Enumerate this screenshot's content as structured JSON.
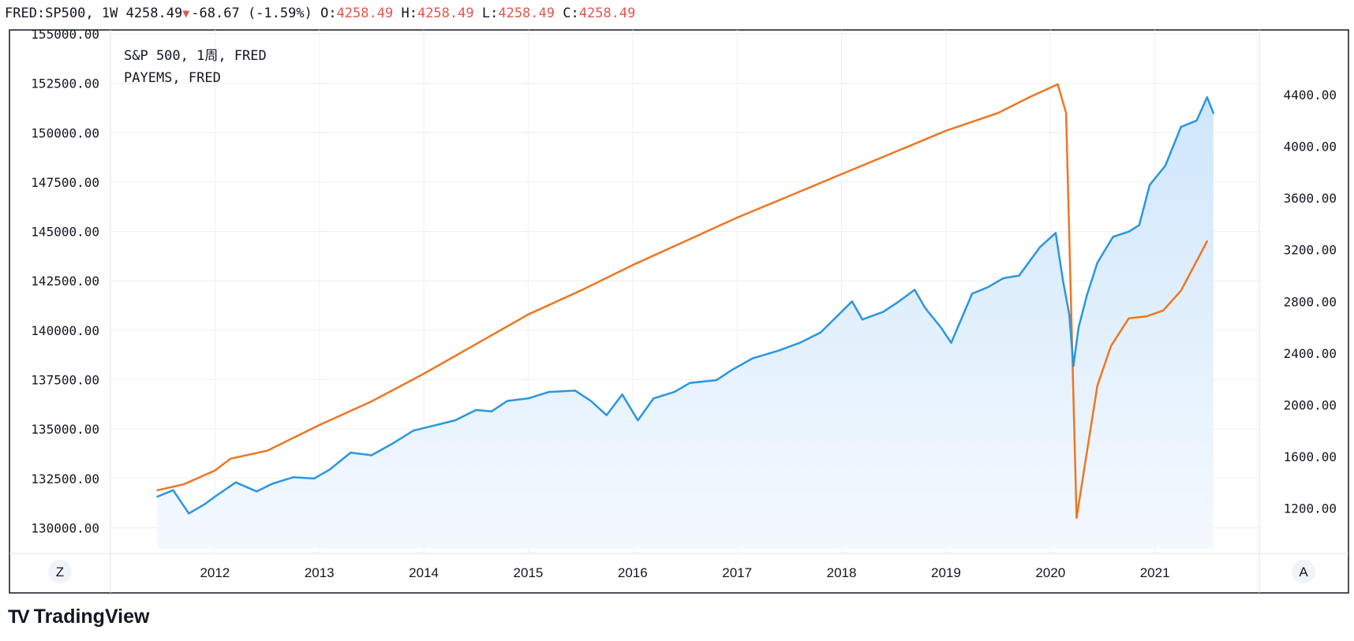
{
  "header": {
    "symbol": "FRED:SP500,",
    "interval": "1W",
    "last": "4258.49",
    "change": "-68.67",
    "change_pct": "(-1.59%)",
    "o_label": "O:",
    "o": "4258.49",
    "h_label": "H:",
    "h": "4258.49",
    "l_label": "L:",
    "l": "4258.49",
    "c_label": "C:",
    "c": "4258.49"
  },
  "legend": {
    "line1": "S&P 500, 1周, FRED",
    "line2": "PAYEMS, FRED"
  },
  "buttons": {
    "left": "Z",
    "right": "A"
  },
  "logo": {
    "mark": "TV",
    "text": "TradingView"
  },
  "colors": {
    "sp500": "#2a96e0",
    "payems": "#f07520",
    "grid": "#eef0f3",
    "border": "#131722",
    "area_top": "#cfe6fb",
    "area_bottom": "#f4f9fe"
  },
  "chart_data": {
    "type": "line",
    "title": "",
    "x_labels": [
      "2012",
      "2013",
      "2014",
      "2015",
      "2016",
      "2017",
      "2018",
      "2019",
      "2020",
      "2021"
    ],
    "left_axis": {
      "ylim": [
        128700,
        155200
      ],
      "ticks": [
        "130000.00",
        "132500.00",
        "135000.00",
        "137500.00",
        "140000.00",
        "142500.00",
        "145000.00",
        "147500.00",
        "150000.00",
        "152500.00",
        "155000.00"
      ]
    },
    "right_axis": {
      "ylim": [
        850,
        4900
      ],
      "ticks": [
        "1200.00",
        "1600.00",
        "2000.00",
        "2400.00",
        "2800.00",
        "3200.00",
        "3600.00",
        "4000.00",
        "4400.00"
      ]
    },
    "series": [
      {
        "name": "PAYEMS, FRED",
        "axis": "left",
        "x": [
          2011.45,
          2011.7,
          2012.0,
          2012.15,
          2012.5,
          2013.0,
          2013.5,
          2014.0,
          2014.5,
          2015.0,
          2015.5,
          2016.0,
          2016.5,
          2017.0,
          2017.5,
          2018.0,
          2018.5,
          2019.0,
          2019.5,
          2019.8,
          2020.07,
          2020.15,
          2020.25,
          2020.33,
          2020.45,
          2020.58,
          2020.75,
          2020.92,
          2021.08,
          2021.25,
          2021.5
        ],
        "values": [
          131900,
          132200,
          132900,
          133500,
          133900,
          135200,
          136400,
          137800,
          139300,
          140800,
          142000,
          143300,
          144500,
          145700,
          146800,
          147900,
          149000,
          150100,
          151000,
          151800,
          152450,
          151000,
          130500,
          133200,
          137200,
          139200,
          140600,
          140700,
          141000,
          142000,
          144500
        ]
      },
      {
        "name": "S&P 500, 1周, FRED",
        "axis": "right",
        "x": [
          2011.45,
          2011.6,
          2011.75,
          2011.9,
          2012.0,
          2012.2,
          2012.4,
          2012.55,
          2012.75,
          2012.95,
          2013.1,
          2013.3,
          2013.5,
          2013.7,
          2013.9,
          2014.1,
          2014.3,
          2014.5,
          2014.65,
          2014.8,
          2015.0,
          2015.2,
          2015.45,
          2015.6,
          2015.75,
          2015.9,
          2016.05,
          2016.2,
          2016.4,
          2016.55,
          2016.8,
          2016.95,
          2017.15,
          2017.4,
          2017.6,
          2017.8,
          2017.95,
          2018.1,
          2018.2,
          2018.4,
          2018.55,
          2018.7,
          2018.8,
          2018.95,
          2019.05,
          2019.25,
          2019.4,
          2019.55,
          2019.7,
          2019.9,
          2020.05,
          2020.12,
          2020.18,
          2020.22,
          2020.27,
          2020.35,
          2020.45,
          2020.6,
          2020.75,
          2020.85,
          2020.95,
          2021.1,
          2021.25,
          2021.4,
          2021.5,
          2021.56
        ],
        "values": [
          1290,
          1340,
          1160,
          1230,
          1290,
          1400,
          1330,
          1390,
          1440,
          1430,
          1500,
          1630,
          1610,
          1700,
          1800,
          1840,
          1880,
          1960,
          1950,
          2030,
          2050,
          2100,
          2110,
          2030,
          1920,
          2080,
          1880,
          2050,
          2100,
          2170,
          2190,
          2270,
          2360,
          2420,
          2480,
          2560,
          2680,
          2800,
          2660,
          2720,
          2800,
          2890,
          2750,
          2600,
          2480,
          2860,
          2910,
          2980,
          3000,
          3220,
          3330,
          2960,
          2700,
          2300,
          2600,
          2850,
          3100,
          3300,
          3340,
          3390,
          3700,
          3850,
          4150,
          4200,
          4380,
          4258
        ]
      }
    ]
  }
}
